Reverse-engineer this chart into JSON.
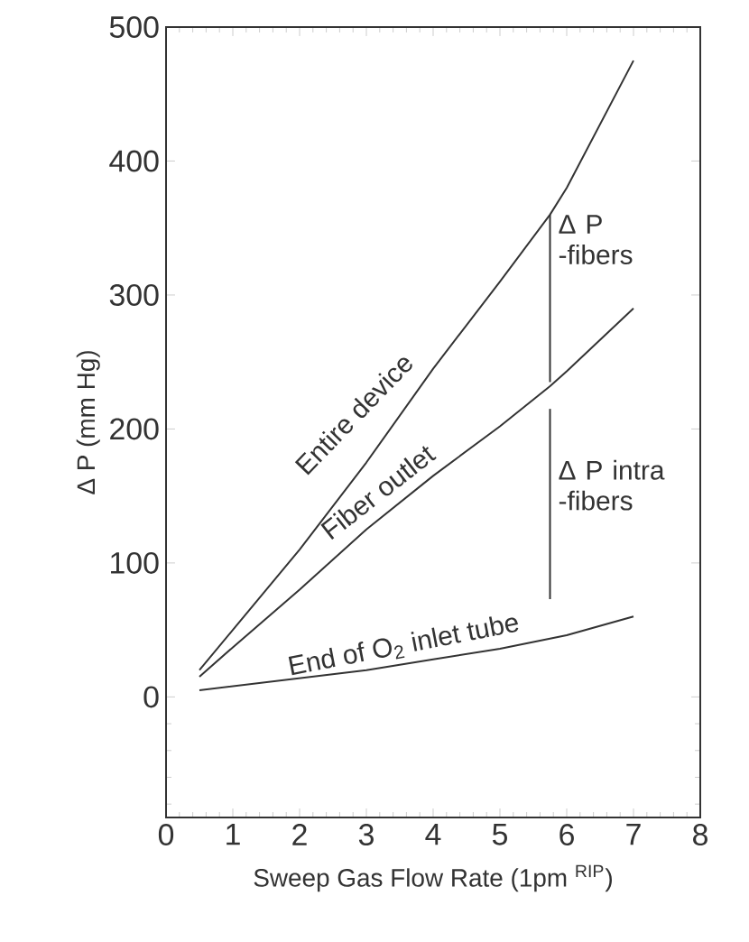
{
  "chart_data": {
    "type": "line",
    "xlabel": "Sweep Gas Flow  Rate (1pm $^{RIP}$)",
    "ylabel": "Δ P (mm Hg)",
    "xlim": [
      0,
      8
    ],
    "xticks": [
      0,
      1,
      2,
      3,
      4,
      5,
      6,
      7,
      8
    ],
    "ylim": [
      -90,
      500
    ],
    "yticks": [
      0,
      100,
      200,
      300,
      400,
      500
    ],
    "series": [
      {
        "color": "#333333",
        "x": [
          0.5,
          1,
          2,
          3,
          4,
          5,
          5.75,
          6,
          7
        ],
        "values": [
          20,
          50,
          110,
          175,
          245,
          310,
          360,
          380,
          475
        ]
      },
      {
        "color": "#333333",
        "x": [
          0.5,
          1,
          2,
          3,
          4,
          5,
          5.75,
          6,
          7
        ],
        "values": [
          15,
          37,
          80,
          125,
          165,
          202,
          232,
          243,
          290
        ]
      },
      {
        "color": "#333333",
        "x": [
          0.5,
          1,
          2,
          3,
          4,
          5,
          6,
          7
        ],
        "values": [
          5,
          8,
          14,
          20,
          28,
          36,
          46,
          60
        ]
      },
      {
        "color": "#333333",
        "x": [
          5.75,
          5.75
        ],
        "values": [
          360,
          235
        ]
      },
      {
        "color": "#333333",
        "x": [
          5.75,
          5.75
        ],
        "values": [
          215,
          73
        ]
      }
    ],
    "annotations": [
      "Entire device",
      "Fiber outlet",
      "End of O$_{2}$ inlet tube",
      "Δ P -fibers",
      "Δ P intra -fibers"
    ],
    "grid": false,
    "marker": "none",
    "line_style": "solid"
  }
}
